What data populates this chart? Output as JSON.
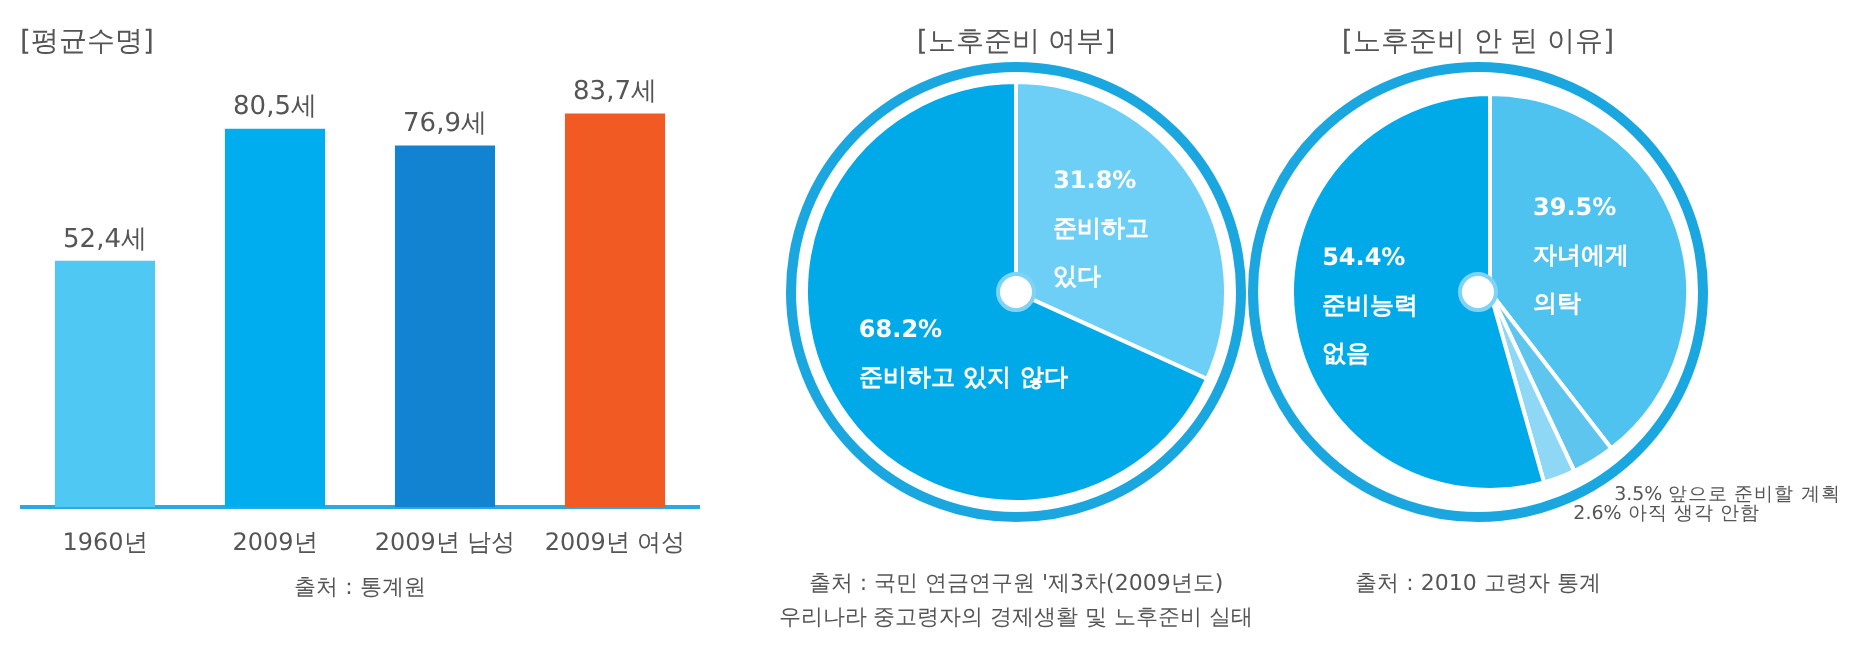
{
  "chart_data": [
    {
      "type": "bar",
      "title": "[평균수명]",
      "categories": [
        "1960년",
        "2009년",
        "2009년 남성",
        "2009년 여성"
      ],
      "values": [
        52.4,
        80.5,
        76.9,
        83.7
      ],
      "colors": [
        "#4fc8f4",
        "#00aeef",
        "#1283d0",
        "#f15a22"
      ],
      "value_labels": [
        "52,4세",
        "80,5세",
        "76,9세",
        "83,7세"
      ],
      "annotations": [
        "출처 : 통계원"
      ]
    },
    {
      "type": "pie",
      "title": "[노후준비 여부]",
      "categories": [
        "준비하고\n있다",
        "준비하고 있지 않다"
      ],
      "values": [
        31.8,
        68.2
      ],
      "colors": [
        "#6dcff6",
        "#00a9e8"
      ],
      "value_labels": [
        "31.8%",
        "68.2%"
      ],
      "annotations": [
        "출처 : 국민 연금연구원 '제3차(2009년도)\n우리나라 중고령자의 경제생활 및 노후준비 실태"
      ]
    },
    {
      "type": "pie",
      "title": "[노후준비 안 된 이유]",
      "categories": [
        "자녀에게\n의탁",
        "앞으로 준비할 계획",
        "아직 생각 안함",
        "준비능력\n없음"
      ],
      "values": [
        39.5,
        3.5,
        2.6,
        54.4
      ],
      "colors": [
        "#4fc3f0",
        "#5ec6ee",
        "#8fd8f5",
        "#00a9e8"
      ],
      "value_labels": [
        "39.5%",
        "3.5%",
        "2.6%",
        "54.4%"
      ],
      "annotations": [
        "출처 : 2010 고령자 통계"
      ]
    }
  ]
}
